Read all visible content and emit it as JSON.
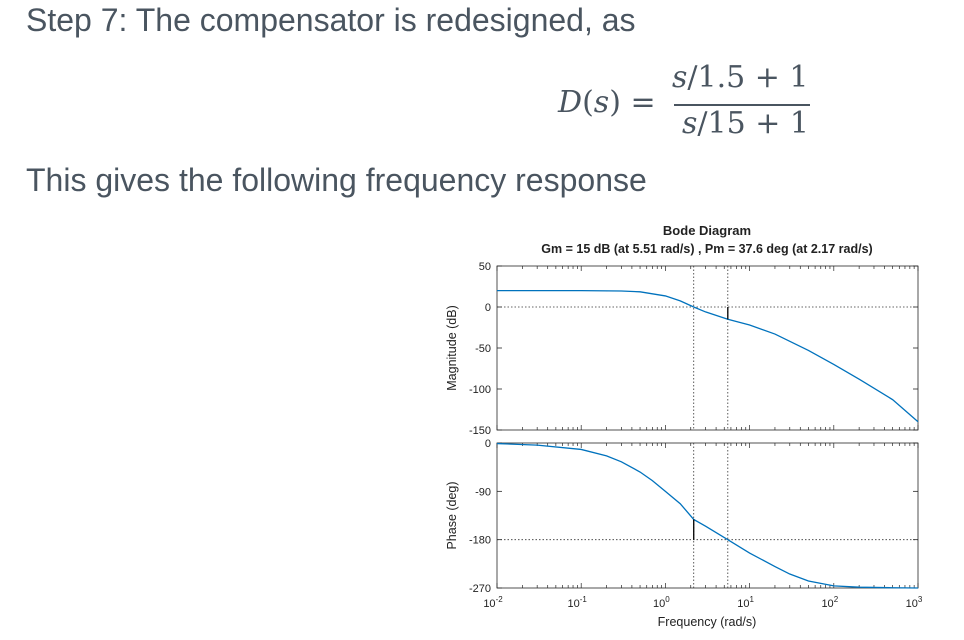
{
  "slide": {
    "heading": "Step 7: The compensator is redesigned, as",
    "subheading": "This gives the following frequency response",
    "equation": {
      "lhs_fn": "D",
      "lhs_var": "s",
      "equals": "=",
      "num_var": "s",
      "num_rest": "/1.5 + 1",
      "den_var": "s",
      "den_rest": "/15 + 1"
    }
  },
  "chart_data": {
    "type": "line",
    "title": "Bode Diagram",
    "subtitle": "Gm = 15 dB (at 5.51 rad/s) ,  Pm = 37.6 deg (at 2.17 rad/s)",
    "xlabel": "Frequency  (rad/s)",
    "xscale": "log",
    "xlim": [
      0.01,
      1000
    ],
    "x_ticks": [
      {
        "value": 0.01,
        "base": "10",
        "exp": "-2"
      },
      {
        "value": 0.1,
        "base": "10",
        "exp": "-1"
      },
      {
        "value": 1,
        "base": "10",
        "exp": "0"
      },
      {
        "value": 10,
        "base": "10",
        "exp": "1"
      },
      {
        "value": 100,
        "base": "10",
        "exp": "2"
      },
      {
        "value": 1000,
        "base": "10",
        "exp": "3"
      }
    ],
    "color": "#0072BD",
    "gain_margin": {
      "value_db": 15,
      "frequency": 5.51
    },
    "phase_margin": {
      "value_deg": 37.6,
      "frequency": 2.17
    },
    "panels": [
      {
        "name": "magnitude",
        "ylabel": "Magnitude (dB)",
        "ylim": [
          -150,
          50
        ],
        "yticks": [
          "50",
          "0",
          "-50",
          "-100",
          "-150"
        ],
        "ytick_values": [
          50,
          0,
          -50,
          -100,
          -150
        ],
        "reference_line": 0,
        "series": [
          {
            "x": [
              0.01,
              0.1,
              0.3,
              0.5,
              1,
              1.5,
              2.17,
              3,
              5.51,
              10,
              20,
              50,
              100,
              200,
              500,
              1000
            ],
            "y": [
              20,
              20,
              19.5,
              18.5,
              13.5,
              7.5,
              0,
              -6,
              -15,
              -22,
              -33,
              -53,
              -70,
              -88,
              -113,
              -140
            ]
          }
        ]
      },
      {
        "name": "phase",
        "ylabel": "Phase (deg)",
        "ylim": [
          -270,
          0
        ],
        "yticks": [
          "0",
          "-90",
          "-180",
          "-270"
        ],
        "ytick_values": [
          0,
          -90,
          -180,
          -270
        ],
        "reference_line": -180,
        "series": [
          {
            "x": [
              0.01,
              0.03,
              0.1,
              0.2,
              0.3,
              0.5,
              0.7,
              1,
              1.5,
              2.17,
              3,
              5.51,
              10,
              20,
              30,
              50,
              100,
              200,
              500,
              1000
            ],
            "y": [
              -1,
              -4,
              -12,
              -24,
              -35,
              -54,
              -70,
              -90,
              -113,
              -142.4,
              -155,
              -180,
              -205,
              -230,
              -244,
              -257,
              -266,
              -268.5,
              -269.5,
              -270
            ]
          }
        ]
      }
    ]
  }
}
